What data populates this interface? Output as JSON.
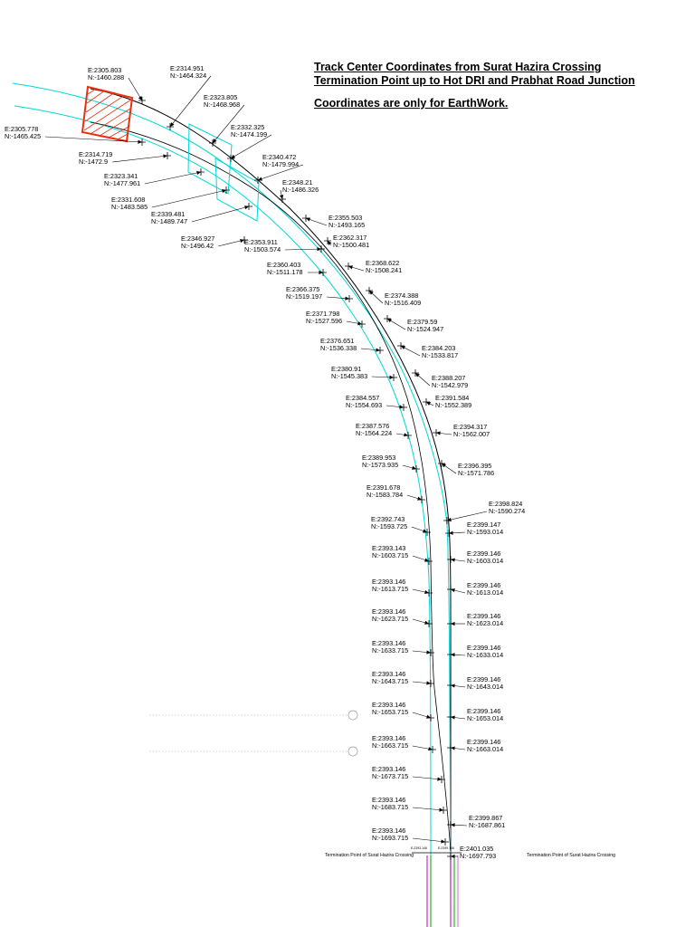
{
  "title": {
    "line1": "Track Center Coordinates from Surat Hazira Crossing",
    "line2": "Termination Point up to Hot DRI and Prabhat Road Junction",
    "note": "Coordinates are only for EarthWork."
  },
  "colors": {
    "track_line": "#000000",
    "alignment_line": "#00d8d8",
    "highlight_box": "#e83010",
    "rail_magenta": "#c000c0",
    "rail_green": "#00a000"
  },
  "termination": {
    "left_label": "Termination Point of Surat Hazira Crossing",
    "right_label": "Termination Point of Surat Hazira Crossing",
    "small_left": "E:2393.146",
    "small_right": "E:2399.146"
  },
  "coordinates": [
    {
      "e": "E:2305.803",
      "n": "N:-1460.288"
    },
    {
      "e": "E:2314.951",
      "n": "N:-1464.324"
    },
    {
      "e": "E:2305.778",
      "n": "N:-1465.425"
    },
    {
      "e": "E:2323.805",
      "n": "N:-1468.968"
    },
    {
      "e": "E:2314.719",
      "n": "N:-1472.9"
    },
    {
      "e": "E:2332.325",
      "n": "N:-1474.199"
    },
    {
      "e": "E:2323.341",
      "n": "N:-1477.961"
    },
    {
      "e": "E:2340.472",
      "n": "N:-1479.994"
    },
    {
      "e": "E:2331.608",
      "n": "N:-1483.585"
    },
    {
      "e": "E:2348.21",
      "n": "N:-1486.326"
    },
    {
      "e": "E:2339.481",
      "n": "N:-1489.747"
    },
    {
      "e": "E:2355.503",
      "n": "N:-1493.165"
    },
    {
      "e": "E:2346.927",
      "n": "N:-1496.42"
    },
    {
      "e": "E:2362.317",
      "n": "N:-1500.481"
    },
    {
      "e": "E:2353.911",
      "n": "N:-1503.574"
    },
    {
      "e": "E:2368.622",
      "n": "N:-1508.241"
    },
    {
      "e": "E:2360.403",
      "n": "N:-1511.178"
    },
    {
      "e": "E:2374.388",
      "n": "N:-1516.409"
    },
    {
      "e": "E:2366.375",
      "n": "N:-1519.197"
    },
    {
      "e": "E:2379.59",
      "n": "N:-1524.947"
    },
    {
      "e": "E:2371.798",
      "n": "N:-1527.596"
    },
    {
      "e": "E:2384.203",
      "n": "N:-1533.817"
    },
    {
      "e": "E:2376.651",
      "n": "N:-1536.338"
    },
    {
      "e": "E:2388.207",
      "n": "N:-1542.979"
    },
    {
      "e": "E:2380.91",
      "n": "N:-1545.383"
    },
    {
      "e": "E:2391.584",
      "n": "N:-1552.389"
    },
    {
      "e": "E:2384.557",
      "n": "N:-1554.693"
    },
    {
      "e": "E:2394.317",
      "n": "N:-1562.007"
    },
    {
      "e": "E:2387.576",
      "n": "N:-1564.224"
    },
    {
      "e": "E:2396.395",
      "n": "N:-1571.786"
    },
    {
      "e": "E:2389.953",
      "n": "N:-1573.935"
    },
    {
      "e": "E:2391.678",
      "n": "N:-1583.784"
    },
    {
      "e": "E:2398.824",
      "n": "N:-1590.274"
    },
    {
      "e": "E:2399.147",
      "n": "N:-1593.014"
    },
    {
      "e": "E:2392.743",
      "n": "N:-1593.725"
    },
    {
      "e": "E:2399.146",
      "n": "N:-1603.014"
    },
    {
      "e": "E:2393.143",
      "n": "N:-1603.715"
    },
    {
      "e": "E:2399.146",
      "n": "N:-1613.014"
    },
    {
      "e": "E:2393.146",
      "n": "N:-1613.715"
    },
    {
      "e": "E:2399.146",
      "n": "N:-1623.014"
    },
    {
      "e": "E:2393.146",
      "n": "N:-1623.715"
    },
    {
      "e": "E:2399.146",
      "n": "N:-1633.014"
    },
    {
      "e": "E:2393.146",
      "n": "N:-1633.715"
    },
    {
      "e": "E:2399.146",
      "n": "N:-1643.014"
    },
    {
      "e": "E:2393.146",
      "n": "N:-1643.715"
    },
    {
      "e": "E:2399.146",
      "n": "N:-1653.014"
    },
    {
      "e": "E:2393.146",
      "n": "N:-1653.715"
    },
    {
      "e": "E:2399.146",
      "n": "N:-1663.014"
    },
    {
      "e": "E:2393.146",
      "n": "N:-1663.715"
    },
    {
      "e": "E:2393.146",
      "n": "N:-1673.715"
    },
    {
      "e": "E:2393.146",
      "n": "N:-1683.715"
    },
    {
      "e": "E:2399.867",
      "n": "N:-1687.861"
    },
    {
      "e": "E:2393.146",
      "n": "N:-1693.715"
    },
    {
      "e": "E:2401.035",
      "n": "N:-1697.793"
    }
  ]
}
